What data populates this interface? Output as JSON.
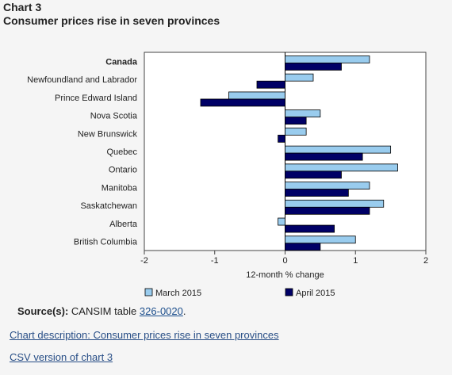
{
  "heading": {
    "chart_number": "Chart 3",
    "title": "Consumer prices rise in seven provinces"
  },
  "chart_data": {
    "type": "bar",
    "orientation": "horizontal",
    "title": "Consumer prices rise in seven provinces",
    "xlabel": "12-month % change",
    "ylabel": "",
    "xlim": [
      -2,
      2
    ],
    "x_ticks": [
      "-2",
      "-1",
      "0",
      "1",
      "2"
    ],
    "categories": [
      "Canada",
      "Newfoundland and Labrador",
      "Prince Edward Island",
      "Nova Scotia",
      "New Brunswick",
      "Quebec",
      "Ontario",
      "Manitoba",
      "Saskatchewan",
      "Alberta",
      "British Columbia"
    ],
    "bold_categories": [
      "Canada"
    ],
    "series": [
      {
        "name": "March 2015",
        "color": "#99ccee",
        "values": [
          1.2,
          0.4,
          -0.8,
          0.5,
          0.3,
          1.5,
          1.6,
          1.2,
          1.4,
          -0.1,
          1.0
        ]
      },
      {
        "name": "April 2015",
        "color": "#000066",
        "values": [
          0.8,
          -0.4,
          -1.2,
          0.3,
          -0.1,
          1.1,
          0.8,
          0.9,
          1.2,
          0.7,
          0.5
        ]
      }
    ],
    "grid": false,
    "legend_position": "bottom"
  },
  "source": {
    "label": "Source(s):",
    "text": "CANSIM table",
    "link_text": "326-0020",
    "suffix": "."
  },
  "links": {
    "description": "Chart description: Consumer prices rise in seven provinces",
    "csv": "CSV version of chart 3"
  }
}
